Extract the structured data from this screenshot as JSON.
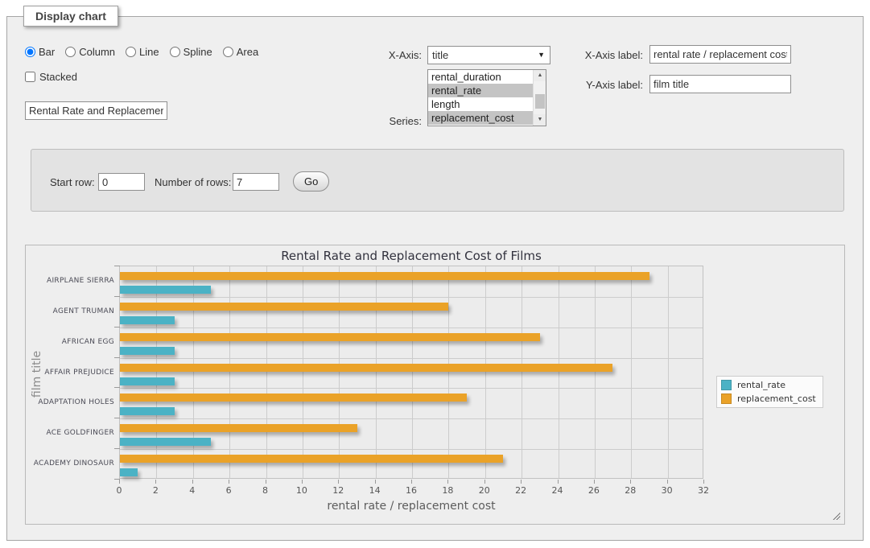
{
  "panel": {
    "legend": "Display chart"
  },
  "chart_type": {
    "options": [
      {
        "label": "Bar",
        "checked": true
      },
      {
        "label": "Column",
        "checked": false
      },
      {
        "label": "Line",
        "checked": false
      },
      {
        "label": "Spline",
        "checked": false
      },
      {
        "label": "Area",
        "checked": false
      }
    ]
  },
  "stacked": {
    "label": "Stacked",
    "checked": false
  },
  "chart_title_input": {
    "value": "Rental Rate and Replacement Cost of Films"
  },
  "x_axis_select": {
    "label": "X-Axis:",
    "value": "title"
  },
  "series_list": {
    "label": "Series:",
    "options": [
      {
        "label": "rental_duration",
        "selected": false
      },
      {
        "label": "rental_rate",
        "selected": true
      },
      {
        "label": "length",
        "selected": false
      },
      {
        "label": "replacement_cost",
        "selected": true
      }
    ]
  },
  "x_axis_label_field": {
    "label": "X-Axis label:",
    "value": "rental rate / replacement cost"
  },
  "y_axis_label_field": {
    "label": "Y-Axis label:",
    "value": "film title"
  },
  "query_panel": {
    "start_row_label": "Start row:",
    "start_row_value": "0",
    "rows_label": "Number of rows:",
    "rows_value": "7",
    "go_label": "Go"
  },
  "chart_data": {
    "type": "bar",
    "orientation": "horizontal",
    "title": "Rental Rate and Replacement Cost of Films",
    "categories": [
      "AIRPLANE SIERRA",
      "AGENT TRUMAN",
      "AFRICAN EGG",
      "AFFAIR PREJUDICE",
      "ADAPTATION HOLES",
      "ACE GOLDFINGER",
      "ACADEMY DINOSAUR"
    ],
    "series": [
      {
        "name": "rental_rate",
        "color": "#4bb2c5",
        "values": [
          4.99,
          2.99,
          2.99,
          2.99,
          2.99,
          4.99,
          0.99
        ]
      },
      {
        "name": "replacement_cost",
        "color": "#eaa228",
        "values": [
          28.99,
          17.99,
          22.99,
          26.99,
          18.99,
          12.99,
          20.99
        ]
      }
    ],
    "xlabel": "rental rate / replacement cost",
    "ylabel": "film title",
    "xlim": [
      0,
      32
    ],
    "xtick_step": 2,
    "grid": true,
    "legend_position": "right",
    "legend": [
      "rental_rate",
      "replacement_cost"
    ]
  }
}
